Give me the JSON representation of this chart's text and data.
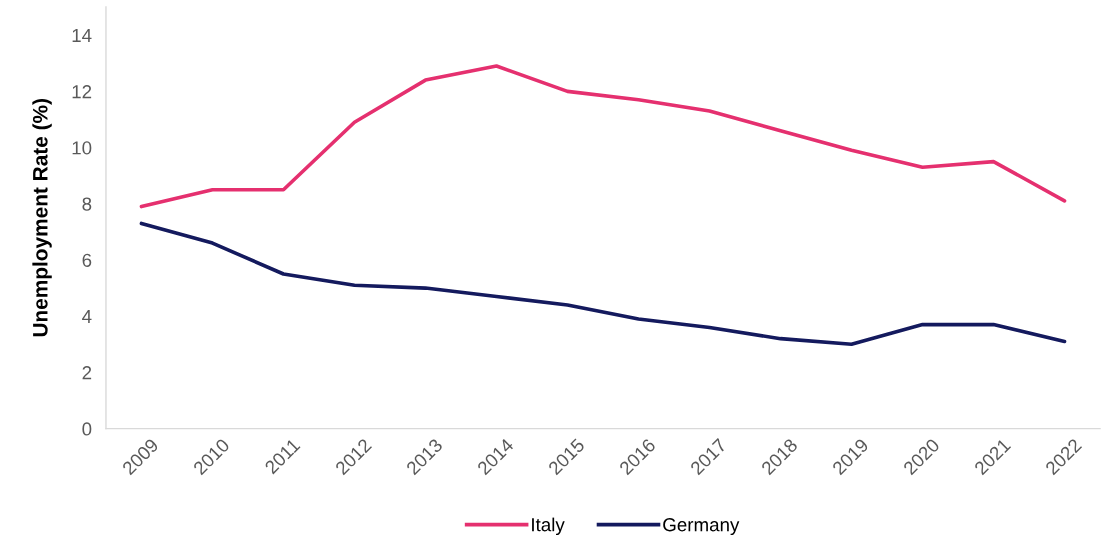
{
  "chart_data": {
    "type": "line",
    "ylabel": "Unemployment Rate (%)",
    "categories": [
      "2009",
      "2010",
      "2011",
      "2012",
      "2013",
      "2014",
      "2015",
      "2016",
      "2017",
      "2018",
      "2019",
      "2020",
      "2021",
      "2022"
    ],
    "series": [
      {
        "name": "Italy",
        "color": "#e5306f",
        "values": [
          7.9,
          8.5,
          8.5,
          10.9,
          12.4,
          12.9,
          12.0,
          11.7,
          11.3,
          10.6,
          9.9,
          9.3,
          9.5,
          8.1
        ]
      },
      {
        "name": "Germany",
        "color": "#141a5e",
        "values": [
          7.3,
          6.6,
          5.5,
          5.1,
          5.0,
          4.7,
          4.4,
          3.9,
          3.6,
          3.2,
          3.0,
          3.7,
          3.7,
          3.1
        ]
      }
    ],
    "ylim": [
      0,
      15
    ],
    "yticks": [
      0,
      2,
      4,
      6,
      8,
      10,
      12,
      14
    ],
    "grid": false,
    "legend": "bottom",
    "marker": "none",
    "line_style": "solid"
  }
}
